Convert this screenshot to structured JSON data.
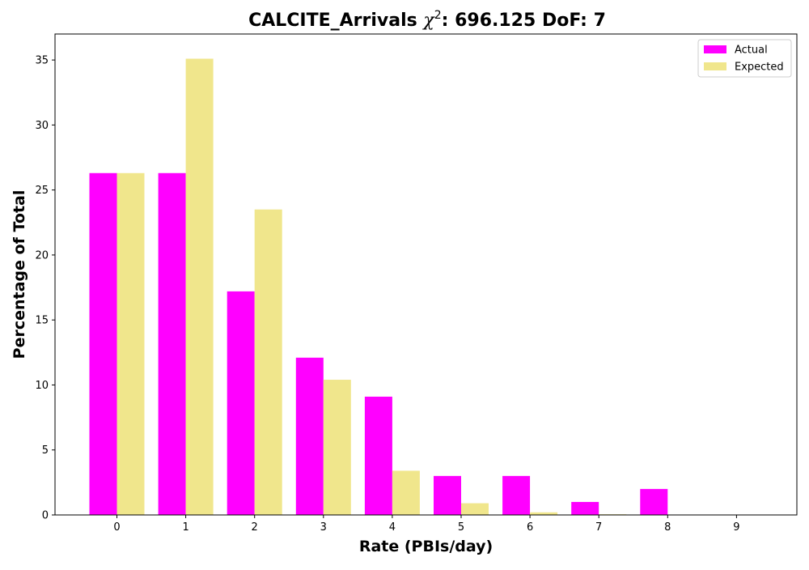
{
  "chart_data": {
    "type": "bar",
    "title_main": "CALCITE_Arrivals ",
    "title_chi": "χ",
    "title_sup": "2",
    "title_rest": ": 696.125 DoF: 7",
    "xlabel": "Rate (PBIs/day)",
    "ylabel": "Percentage of Total",
    "categories": [
      "0",
      "1",
      "2",
      "3",
      "4",
      "5",
      "6",
      "7",
      "8",
      "9"
    ],
    "ylim": [
      0,
      37
    ],
    "yticks": [
      "0",
      "5",
      "10",
      "15",
      "20",
      "25",
      "30",
      "35"
    ],
    "grid": false,
    "legend_position": "top-right",
    "series": [
      {
        "name": "Actual",
        "color": "#ff00ff",
        "values": [
          26.3,
          26.3,
          17.2,
          12.1,
          9.1,
          3.0,
          3.0,
          1.0,
          2.0,
          0.0
        ]
      },
      {
        "name": "Expected",
        "color": "#f0e68c",
        "values": [
          26.3,
          35.1,
          23.5,
          10.4,
          3.4,
          0.9,
          0.2,
          0.05,
          0.0,
          0.0
        ]
      }
    ]
  }
}
